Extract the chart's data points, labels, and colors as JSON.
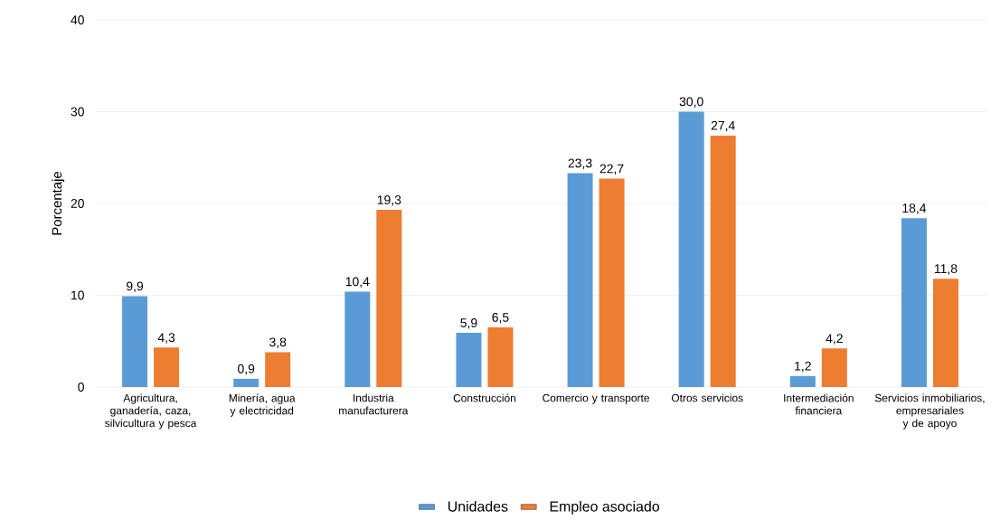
{
  "chart_data": {
    "type": "bar",
    "ylabel": "Porcentaje",
    "categories": [
      "Agricultura, ganadería, caza, silvicultura y pesca",
      "Minería, agua y electricidad",
      "Industria manufacturera",
      "Construcción",
      "Comercio y transporte",
      "Otros servicios",
      "Intermediación financiera",
      "Servicios inmobiliarios, empresariales y de apoyo"
    ],
    "series": [
      {
        "name": "Unidades",
        "color": "#5b9bd5",
        "values": [
          9.9,
          0.9,
          10.4,
          5.9,
          23.3,
          30.0,
          1.2,
          18.4
        ],
        "value_labels": [
          "9,9",
          "0,9",
          "10,4",
          "5,9",
          "23,3",
          "30,0",
          "1,2",
          "18,4"
        ]
      },
      {
        "name": "Empleo asociado",
        "color": "#ed7d31",
        "values": [
          4.3,
          3.8,
          19.3,
          6.5,
          22.7,
          27.4,
          4.2,
          11.8
        ],
        "value_labels": [
          "4,3",
          "3,8",
          "19,3",
          "6,5",
          "22,7",
          "27,4",
          "4,2",
          "11,8"
        ]
      }
    ],
    "ylim": [
      0,
      40
    ],
    "yticks": [
      0,
      10,
      20,
      30,
      40
    ],
    "grid": "y",
    "legend": "bottom"
  }
}
